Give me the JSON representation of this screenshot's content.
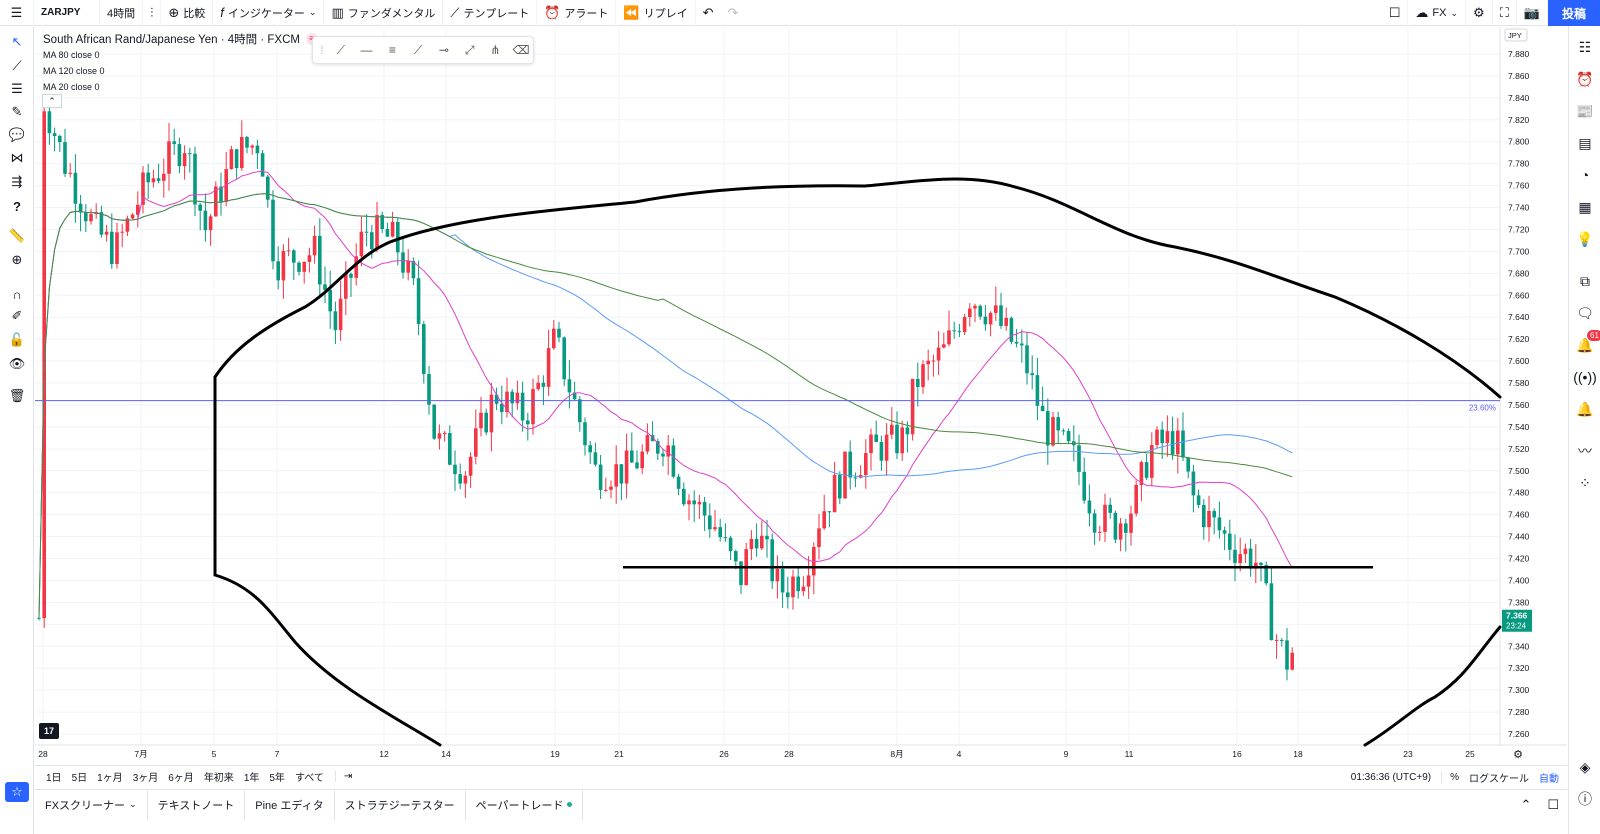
{
  "toolbar": {
    "symbol": "ZARJPY",
    "interval": "4時間",
    "compare_label": "比較",
    "indicators_label": "インジケーター",
    "fundamentals_label": "ファンダメンタル",
    "templates_label": "テンプレート",
    "alert_label": "アラート",
    "replay_label": "リプレイ",
    "fx_label": "FX",
    "post_label": "投稿"
  },
  "legend": {
    "title": "South African Rand/Japanese Yen · 4時間 · FXCM",
    "ma_lines": [
      "MA 80 close 0",
      "MA 120 close 0",
      "MA 20 close 0"
    ]
  },
  "price_axis": {
    "currency": "JPY",
    "ticks": [
      "7.880",
      "7.860",
      "7.840",
      "7.820",
      "7.800",
      "7.780",
      "7.760",
      "7.740",
      "7.720",
      "7.700",
      "7.680",
      "7.660",
      "7.640",
      "7.620",
      "7.600",
      "7.580",
      "7.560",
      "7.540",
      "7.520",
      "7.500",
      "7.480",
      "7.460",
      "7.440",
      "7.420",
      "7.400",
      "7.380",
      "7.360",
      "7.340",
      "7.320",
      "7.300",
      "7.280",
      "7.260"
    ],
    "last_price": "7.366",
    "countdown": "23:24",
    "fib_label": "23.60%"
  },
  "time_axis": [
    "28",
    "7月",
    "5",
    "7",
    "12",
    "14",
    "19",
    "21",
    "26",
    "28",
    "8月",
    "4",
    "9",
    "11",
    "16",
    "18",
    "23",
    "25"
  ],
  "range_buttons": [
    "1日",
    "5日",
    "1ヶ月",
    "3ヶ月",
    "6ヶ月",
    "年初来",
    "1年",
    "5年",
    "すべて"
  ],
  "status": {
    "clock": "01:36:36 (UTC+9)",
    "percent": "%",
    "log_label": "ログスケール",
    "auto_label": "自動"
  },
  "bottom_tabs": [
    "FXスクリーナー",
    "テキストノート",
    "Pine エディタ",
    "ストラテジーテスター",
    "ペーパートレード"
  ],
  "notification_count": "61",
  "colors": {
    "up": "#f23645",
    "down": "#089981",
    "ma20": "#e040c8",
    "ma80": "#5b9cf6",
    "ma120": "#4a8a3c",
    "fib": "#5b5ff0",
    "accent": "#2962ff"
  },
  "chart_data": {
    "type": "candlestick",
    "price_range": [
      7.25,
      7.89
    ],
    "horizontal_support": 7.412,
    "fib_level": {
      "label": "23.60%",
      "value": 7.564
    },
    "last_price": 7.366
  }
}
